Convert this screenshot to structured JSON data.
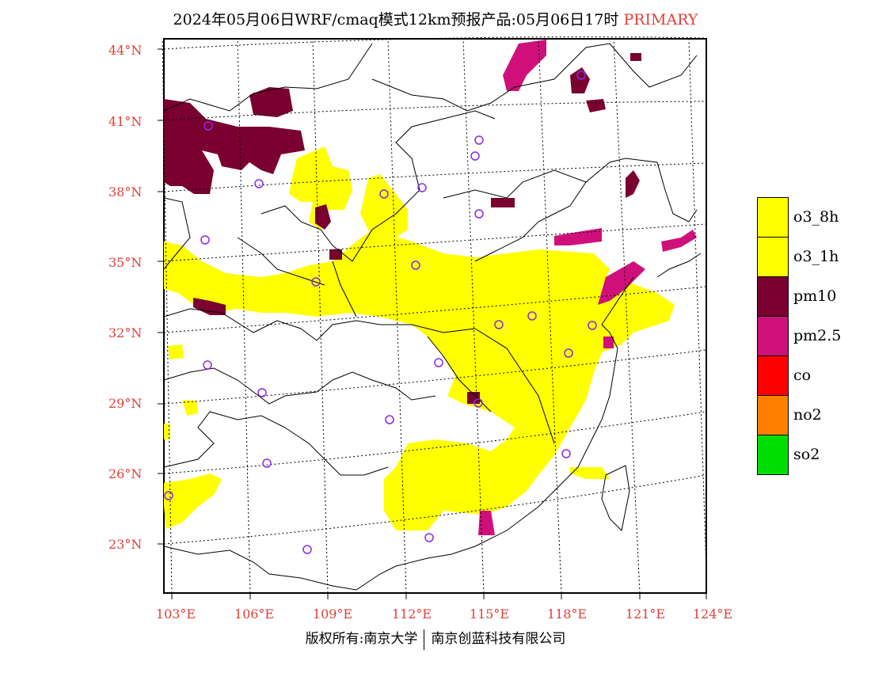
{
  "title": {
    "main": "2024年05月06日WRF/cmaq模式12km预报产品:05月06日17时",
    "tag": "PRIMARY"
  },
  "latitude_labels": [
    "44°N",
    "41°N",
    "38°N",
    "35°N",
    "32°N",
    "29°N",
    "26°N",
    "23°N"
  ],
  "longitude_labels": [
    "103°E",
    "106°E",
    "109°E",
    "112°E",
    "115°E",
    "118°E",
    "121°E",
    "124°E"
  ],
  "legend": [
    {
      "label": "o3_8h",
      "color": "#ffff00"
    },
    {
      "label": "o3_1h",
      "color": "#ffff00"
    },
    {
      "label": "pm10",
      "color": "#7a0030"
    },
    {
      "label": "pm2.5",
      "color": "#d0107a"
    },
    {
      "label": "co",
      "color": "#ff0000"
    },
    {
      "label": "no2",
      "color": "#ff8000"
    },
    {
      "label": "so2",
      "color": "#00dd00"
    }
  ],
  "footer": {
    "left": "版权所有:南京大学",
    "right": "南京创蓝科技有限公司"
  },
  "colors": {
    "axis_label": "#e0403a",
    "station_marker": "#8a2be2",
    "o3": "#ffff00",
    "pm10": "#7a0030",
    "pm25": "#d0107a"
  }
}
